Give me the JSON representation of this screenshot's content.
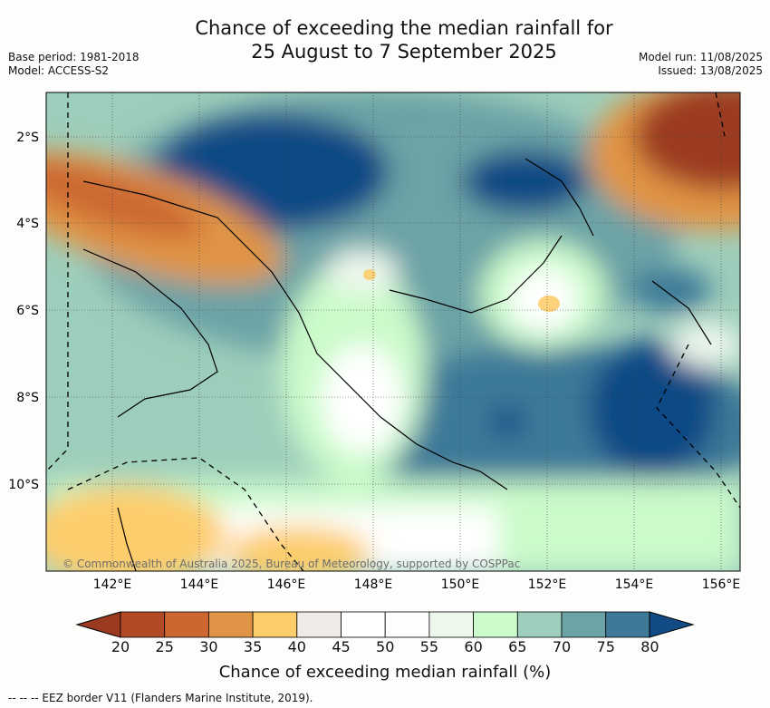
{
  "title_line1": "Chance of exceeding the median rainfall for",
  "title_line2": "25 August to 7 September 2025",
  "base_period": "Base period: 1981-2018",
  "model": "Model: ACCESS-S2",
  "model_run": "Model run: 11/08/2025",
  "issued": "Issued: 13/08/2025",
  "copyright": "© Commonwealth of Australia 2025, Bureau of Meteorology, supported by COSPPac",
  "lon_ticks": [
    "142°E",
    "144°E",
    "146°E",
    "148°E",
    "150°E",
    "152°E",
    "154°E",
    "156°E"
  ],
  "lat_ticks": [
    "2°S",
    "4°S",
    "6°S",
    "8°S",
    "10°S"
  ],
  "colorbar": {
    "ticks": [
      "20",
      "25",
      "30",
      "35",
      "40",
      "45",
      "50",
      "55",
      "60",
      "65",
      "70",
      "75",
      "80"
    ],
    "colors": [
      "#9b3a20",
      "#b24a25",
      "#cc6731",
      "#e09445",
      "#fdcd6c",
      "#efebe7",
      "#ffffff",
      "#fdfefd",
      "#edf7ec",
      "#cbfbca",
      "#9dcebb",
      "#6ca3a6",
      "#3e7998",
      "#114a85"
    ],
    "label": "Chance of exceeding median rainfall (%)"
  },
  "footnote": "--  --  -- EEZ border V11 (Flanders Marine Institute, 2019)."
}
